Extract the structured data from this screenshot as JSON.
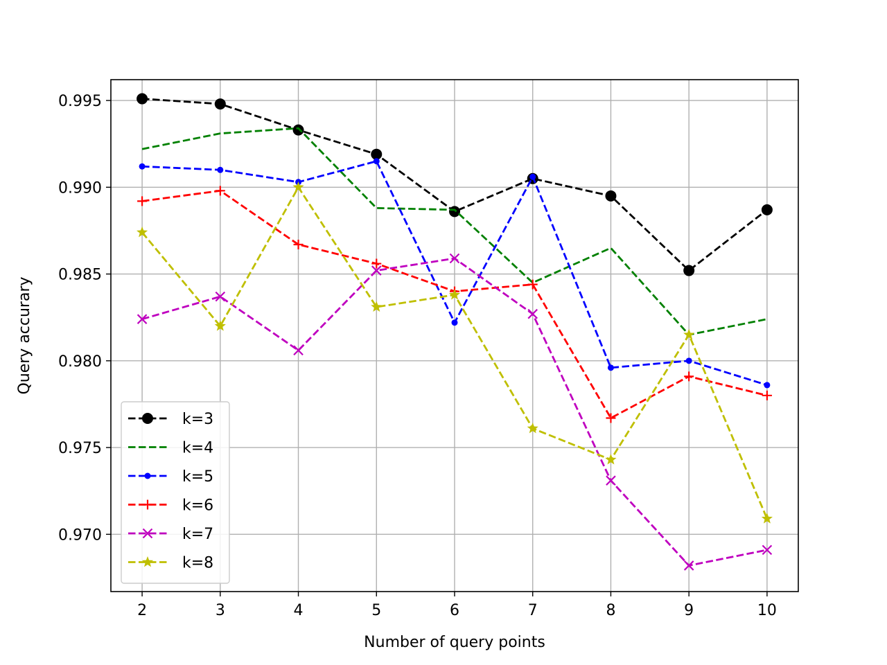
{
  "chart_data": {
    "type": "line",
    "title": "",
    "xlabel": "Number of query points",
    "ylabel": "Query accurary",
    "x": [
      2,
      3,
      4,
      5,
      6,
      7,
      8,
      9,
      10
    ],
    "xlim": [
      1.6,
      10.4
    ],
    "ylim": [
      0.9667,
      0.9962
    ],
    "xticks": [
      2,
      3,
      4,
      5,
      6,
      7,
      8,
      9,
      10
    ],
    "yticks": [
      0.97,
      0.975,
      0.98,
      0.985,
      0.99,
      0.995
    ],
    "ytick_labels": [
      "0.970",
      "0.975",
      "0.980",
      "0.985",
      "0.990",
      "0.995"
    ],
    "grid": true,
    "legend_position": "lower-left",
    "series": [
      {
        "name": "k=3",
        "color": "#000000",
        "marker": "circle",
        "values": [
          0.9951,
          0.9948,
          0.9933,
          0.9919,
          0.9886,
          0.9905,
          0.9895,
          0.9852,
          0.9887
        ]
      },
      {
        "name": "k=4",
        "color": "#008000",
        "marker": "none",
        "values": [
          0.9922,
          0.9931,
          0.9934,
          0.9888,
          0.9887,
          0.9845,
          0.9865,
          0.9815,
          0.9824
        ]
      },
      {
        "name": "k=5",
        "color": "#0000ff",
        "marker": "point",
        "values": [
          0.9912,
          0.991,
          0.9903,
          0.9915,
          0.9822,
          0.9906,
          0.9796,
          0.98,
          0.9786
        ]
      },
      {
        "name": "k=6",
        "color": "#ff0000",
        "marker": "plus",
        "values": [
          0.9892,
          0.9898,
          0.9867,
          0.9856,
          0.984,
          0.9844,
          0.9767,
          0.9791,
          0.978
        ]
      },
      {
        "name": "k=7",
        "color": "#bf00bf",
        "marker": "x",
        "values": [
          0.9824,
          0.9837,
          0.9806,
          0.9852,
          0.9859,
          0.9827,
          0.9731,
          0.9682,
          0.9691
        ]
      },
      {
        "name": "k=8",
        "color": "#bfbf00",
        "marker": "star",
        "values": [
          0.9874,
          0.982,
          0.99,
          0.9831,
          0.9838,
          0.9761,
          0.9743,
          0.9815,
          0.9709
        ]
      }
    ]
  }
}
